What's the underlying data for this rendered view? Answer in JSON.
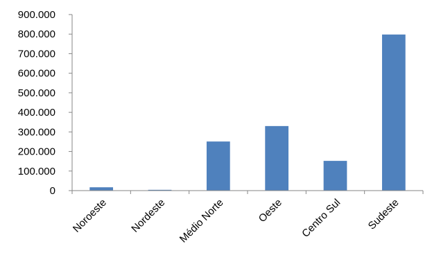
{
  "chart_data": {
    "type": "bar",
    "categories": [
      "Noroeste",
      "Nordeste",
      "Médio Norte",
      "Oeste",
      "Centro Sul",
      "Sudeste"
    ],
    "values": [
      17000,
      4000,
      251000,
      330000,
      152000,
      798000
    ],
    "ylim": [
      0,
      900000
    ],
    "yticks": [
      "0",
      "100.000",
      "200.000",
      "300.000",
      "400.000",
      "500.000",
      "600.000",
      "700.000",
      "800.000",
      "900.000"
    ],
    "title": "",
    "xlabel": "",
    "ylabel": "",
    "grid": false,
    "legend": "none",
    "bar_color": "#4F81BD",
    "axis_color": "#868686"
  }
}
